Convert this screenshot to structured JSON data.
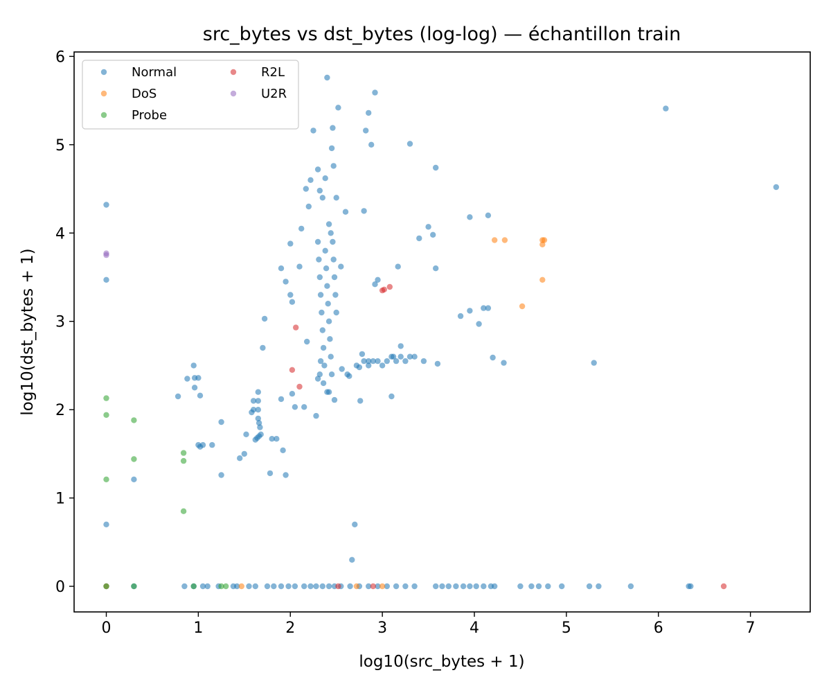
{
  "chart_data": {
    "type": "scatter",
    "title": "src_bytes vs dst_bytes (log-log) — échantillon train",
    "xlabel": "log10(src_bytes + 1)",
    "ylabel": "log10(dst_bytes + 1)",
    "xlim": [
      -0.35,
      7.65
    ],
    "ylim": [
      -0.29,
      6.05
    ],
    "xticks": [
      "0",
      "1",
      "2",
      "3",
      "4",
      "5",
      "6",
      "7"
    ],
    "yticks": [
      "0",
      "1",
      "2",
      "3",
      "4",
      "5",
      "6"
    ],
    "grid": false,
    "legend_position": "top-left",
    "legend_columns": 2,
    "series": [
      {
        "name": "Normal",
        "color": "#1f77b4",
        "points": [
          [
            0,
            4.32
          ],
          [
            0,
            3.47
          ],
          [
            0,
            0.7
          ],
          [
            0,
            0
          ],
          [
            0.3,
            1.21
          ],
          [
            0.3,
            0
          ],
          [
            0.78,
            2.15
          ],
          [
            0.88,
            2.35
          ],
          [
            0.95,
            2.5
          ],
          [
            0.96,
            2.36
          ],
          [
            1.0,
            2.36
          ],
          [
            1.02,
            2.16
          ],
          [
            0.96,
            2.25
          ],
          [
            1.0,
            1.6
          ],
          [
            1.02,
            1.58
          ],
          [
            1.05,
            1.6
          ],
          [
            1.15,
            1.6
          ],
          [
            1.25,
            1.86
          ],
          [
            1.25,
            1.26
          ],
          [
            1.45,
            1.45
          ],
          [
            1.5,
            1.5
          ],
          [
            1.52,
            1.72
          ],
          [
            1.58,
            1.97
          ],
          [
            1.6,
            2.1
          ],
          [
            1.6,
            2.0
          ],
          [
            1.65,
            2.2
          ],
          [
            1.65,
            2.1
          ],
          [
            1.65,
            2.0
          ],
          [
            1.65,
            1.9
          ],
          [
            1.66,
            1.85
          ],
          [
            1.67,
            1.8
          ],
          [
            1.62,
            1.66
          ],
          [
            1.64,
            1.68
          ],
          [
            1.66,
            1.7
          ],
          [
            1.68,
            1.72
          ],
          [
            1.7,
            2.7
          ],
          [
            1.72,
            3.03
          ],
          [
            1.78,
            1.28
          ],
          [
            1.8,
            1.67
          ],
          [
            1.85,
            1.67
          ],
          [
            1.9,
            2.12
          ],
          [
            1.92,
            1.54
          ],
          [
            1.95,
            1.26
          ],
          [
            1.9,
            3.6
          ],
          [
            1.95,
            3.45
          ],
          [
            2.0,
            3.88
          ],
          [
            2.0,
            3.3
          ],
          [
            2.02,
            3.22
          ],
          [
            2.02,
            2.18
          ],
          [
            2.05,
            2.03
          ],
          [
            2.1,
            3.62
          ],
          [
            2.12,
            4.05
          ],
          [
            2.15,
            2.03
          ],
          [
            2.17,
            4.5
          ],
          [
            2.18,
            2.77
          ],
          [
            2.2,
            4.3
          ],
          [
            2.22,
            4.6
          ],
          [
            2.25,
            5.16
          ],
          [
            2.28,
            1.93
          ],
          [
            2.3,
            4.72
          ],
          [
            2.32,
            4.48
          ],
          [
            2.35,
            4.4
          ],
          [
            2.38,
            4.62
          ],
          [
            2.4,
            5.76
          ],
          [
            2.42,
            4.1
          ],
          [
            2.44,
            4.0
          ],
          [
            2.3,
            3.9
          ],
          [
            2.31,
            3.7
          ],
          [
            2.32,
            3.5
          ],
          [
            2.33,
            3.3
          ],
          [
            2.34,
            3.1
          ],
          [
            2.35,
            2.9
          ],
          [
            2.36,
            2.7
          ],
          [
            2.37,
            2.5
          ],
          [
            2.38,
            3.8
          ],
          [
            2.39,
            3.6
          ],
          [
            2.4,
            3.4
          ],
          [
            2.41,
            3.2
          ],
          [
            2.42,
            3.0
          ],
          [
            2.43,
            2.8
          ],
          [
            2.44,
            2.6
          ],
          [
            2.45,
            2.4
          ],
          [
            2.46,
            3.9
          ],
          [
            2.47,
            3.7
          ],
          [
            2.48,
            3.5
          ],
          [
            2.49,
            3.3
          ],
          [
            2.5,
            3.1
          ],
          [
            2.32,
            2.4
          ],
          [
            2.36,
            2.3
          ],
          [
            2.4,
            2.2
          ],
          [
            2.45,
            4.96
          ],
          [
            2.46,
            5.19
          ],
          [
            2.47,
            4.76
          ],
          [
            2.48,
            2.11
          ],
          [
            2.5,
            4.4
          ],
          [
            2.52,
            5.42
          ],
          [
            2.55,
            3.62
          ],
          [
            2.6,
            4.24
          ],
          [
            2.62,
            2.4
          ],
          [
            2.67,
            0.3
          ],
          [
            2.7,
            0.7
          ],
          [
            2.72,
            2.5
          ],
          [
            2.75,
            2.48
          ],
          [
            2.78,
            2.63
          ],
          [
            2.8,
            4.25
          ],
          [
            2.8,
            2.55
          ],
          [
            2.82,
            5.16
          ],
          [
            2.85,
            5.36
          ],
          [
            2.85,
            2.55
          ],
          [
            2.85,
            2.5
          ],
          [
            2.88,
            5.0
          ],
          [
            2.9,
            2.55
          ],
          [
            2.92,
            5.59
          ],
          [
            2.95,
            3.47
          ],
          [
            2.95,
            2.55
          ],
          [
            3.0,
            2.5
          ],
          [
            3.05,
            2.55
          ],
          [
            3.1,
            2.6
          ],
          [
            3.1,
            2.15
          ],
          [
            3.12,
            2.6
          ],
          [
            3.15,
            2.55
          ],
          [
            3.2,
            2.6
          ],
          [
            3.2,
            2.72
          ],
          [
            3.25,
            2.55
          ],
          [
            3.3,
            5.01
          ],
          [
            3.3,
            2.6
          ],
          [
            3.35,
            2.6
          ],
          [
            3.4,
            3.94
          ],
          [
            3.45,
            2.55
          ],
          [
            3.5,
            4.07
          ],
          [
            3.55,
            3.98
          ],
          [
            3.58,
            3.6
          ],
          [
            3.6,
            2.52
          ],
          [
            3.85,
            3.06
          ],
          [
            3.95,
            3.12
          ],
          [
            4.05,
            2.97
          ],
          [
            4.1,
            3.15
          ],
          [
            4.15,
            3.15
          ],
          [
            4.2,
            2.59
          ],
          [
            4.32,
            2.53
          ],
          [
            3.58,
            4.74
          ],
          [
            3.95,
            4.18
          ],
          [
            4.15,
            4.2
          ],
          [
            5.3,
            2.53
          ],
          [
            6.08,
            5.41
          ],
          [
            7.28,
            4.52
          ],
          [
            3.17,
            3.62
          ],
          [
            2.92,
            3.42
          ],
          [
            2.76,
            2.1
          ],
          [
            2.64,
            2.38
          ],
          [
            2.56,
            2.46
          ],
          [
            2.42,
            2.2
          ],
          [
            2.3,
            2.35
          ],
          [
            2.33,
            2.55
          ],
          [
            0.85,
            0
          ],
          [
            0.95,
            0
          ],
          [
            1.05,
            0
          ],
          [
            1.1,
            0
          ],
          [
            1.22,
            0
          ],
          [
            1.38,
            0
          ],
          [
            1.42,
            0
          ],
          [
            1.55,
            0
          ],
          [
            1.62,
            0
          ],
          [
            1.75,
            0
          ],
          [
            1.82,
            0
          ],
          [
            1.9,
            0
          ],
          [
            1.98,
            0
          ],
          [
            2.05,
            0
          ],
          [
            2.15,
            0
          ],
          [
            2.22,
            0
          ],
          [
            2.28,
            0
          ],
          [
            2.35,
            0
          ],
          [
            2.42,
            0
          ],
          [
            2.48,
            0
          ],
          [
            2.55,
            0
          ],
          [
            2.65,
            0
          ],
          [
            2.75,
            0
          ],
          [
            2.85,
            0
          ],
          [
            2.95,
            0
          ],
          [
            3.05,
            0
          ],
          [
            3.15,
            0
          ],
          [
            3.25,
            0
          ],
          [
            3.35,
            0
          ],
          [
            3.58,
            0
          ],
          [
            3.65,
            0
          ],
          [
            3.72,
            0
          ],
          [
            3.8,
            0
          ],
          [
            3.88,
            0
          ],
          [
            3.95,
            0
          ],
          [
            4.02,
            0
          ],
          [
            4.1,
            0
          ],
          [
            4.18,
            0
          ],
          [
            4.22,
            0
          ],
          [
            4.5,
            0
          ],
          [
            4.62,
            0
          ],
          [
            4.7,
            0
          ],
          [
            4.8,
            0
          ],
          [
            4.95,
            0
          ],
          [
            5.25,
            0
          ],
          [
            5.35,
            0
          ],
          [
            5.7,
            0
          ],
          [
            6.33,
            0
          ],
          [
            6.35,
            0
          ]
        ]
      },
      {
        "name": "DoS",
        "color": "#ff7f0e",
        "points": [
          [
            4.22,
            3.92
          ],
          [
            4.33,
            3.92
          ],
          [
            4.52,
            3.17
          ],
          [
            4.74,
            3.92
          ],
          [
            4.74,
            3.87
          ],
          [
            4.74,
            3.47
          ],
          [
            4.76,
            3.92
          ],
          [
            1.47,
            0
          ],
          [
            2.72,
            0
          ],
          [
            3.0,
            0
          ],
          [
            0,
            0
          ]
        ]
      },
      {
        "name": "Probe",
        "color": "#2ca02c",
        "points": [
          [
            0,
            2.13
          ],
          [
            0,
            1.94
          ],
          [
            0,
            1.21
          ],
          [
            0.3,
            1.88
          ],
          [
            0.3,
            1.44
          ],
          [
            0.84,
            1.51
          ],
          [
            0.84,
            1.42
          ],
          [
            0.84,
            0.85
          ],
          [
            0,
            0
          ],
          [
            0.3,
            0
          ],
          [
            0.95,
            0
          ],
          [
            1.25,
            0
          ],
          [
            1.3,
            0
          ]
        ]
      },
      {
        "name": "R2L",
        "color": "#d62728",
        "points": [
          [
            2.02,
            2.45
          ],
          [
            2.06,
            2.93
          ],
          [
            2.1,
            2.26
          ],
          [
            3.0,
            3.35
          ],
          [
            3.02,
            3.36
          ],
          [
            3.08,
            3.39
          ],
          [
            2.52,
            0
          ],
          [
            2.9,
            0
          ],
          [
            6.71,
            0
          ]
        ]
      },
      {
        "name": "U2R",
        "color": "#9467bd",
        "points": [
          [
            0,
            3.77
          ],
          [
            0,
            3.75
          ]
        ]
      }
    ]
  }
}
